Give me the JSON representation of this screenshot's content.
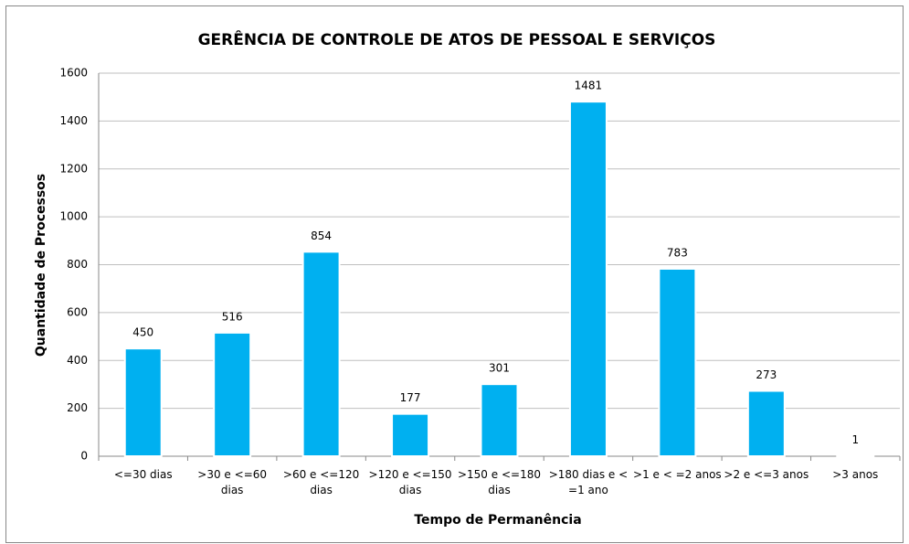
{
  "chart_data": {
    "type": "bar",
    "title": "GERÊNCIA DE CONTROLE DE ATOS DE PESSOAL E SERVIÇOS",
    "x_label": "Tempo de Permanência",
    "y_label": "Quantidade de Processos",
    "categories": [
      "<=30 dias",
      ">30 e <=60 dias",
      ">60 e <=120 dias",
      ">120 e <=150 dias",
      ">150 e <=180 dias",
      ">180 dias e < =1 ano",
      ">1 e < =2 anos",
      ">2 e <=3 anos",
      ">3 anos"
    ],
    "values": [
      450,
      516,
      854,
      177,
      301,
      1481,
      783,
      273,
      1
    ],
    "color": "#00b0f0",
    "ylim": [
      0,
      1600
    ],
    "yticks": [
      0,
      200,
      400,
      600,
      800,
      1000,
      1200,
      1400,
      1600
    ],
    "grid": true
  }
}
